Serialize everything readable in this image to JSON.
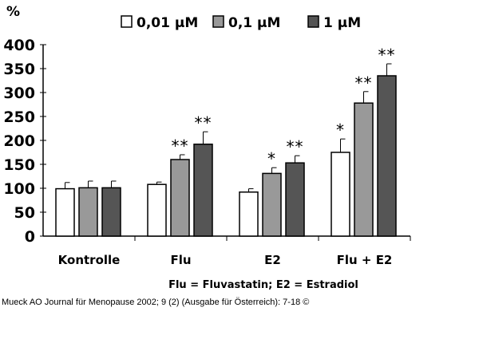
{
  "chart_data": {
    "type": "bar",
    "ylabel": "%",
    "ylim": [
      0,
      400
    ],
    "yticks": [
      0,
      50,
      100,
      150,
      200,
      250,
      300,
      350,
      400
    ],
    "categories": [
      "Kontrolle",
      "Flu",
      "E2",
      "Flu + E2"
    ],
    "series": [
      {
        "name": "0,01 µM",
        "color": "#ffffff",
        "values": [
          99,
          108,
          92,
          175
        ],
        "error": [
          13,
          5,
          7,
          28
        ],
        "significance": [
          "",
          "",
          "",
          "*"
        ]
      },
      {
        "name": "0,1 µM",
        "color": "#999999",
        "values": [
          101,
          160,
          131,
          278
        ],
        "error": [
          14,
          10,
          12,
          24
        ],
        "significance": [
          "",
          "**",
          "*",
          "**"
        ]
      },
      {
        "name": "1 µM",
        "color": "#555555",
        "values": [
          101,
          192,
          153,
          335
        ],
        "error": [
          14,
          26,
          15,
          25
        ],
        "significance": [
          "",
          "**",
          "**",
          "**"
        ]
      }
    ],
    "legend_position": "top",
    "grid": false,
    "note": "Flu = Fluvastatin; E2 = Estradiol"
  },
  "footer": "Mueck AO Journal für Menopause 2002; 9 (2) (Ausgabe für Österreich): 7-18 ©"
}
